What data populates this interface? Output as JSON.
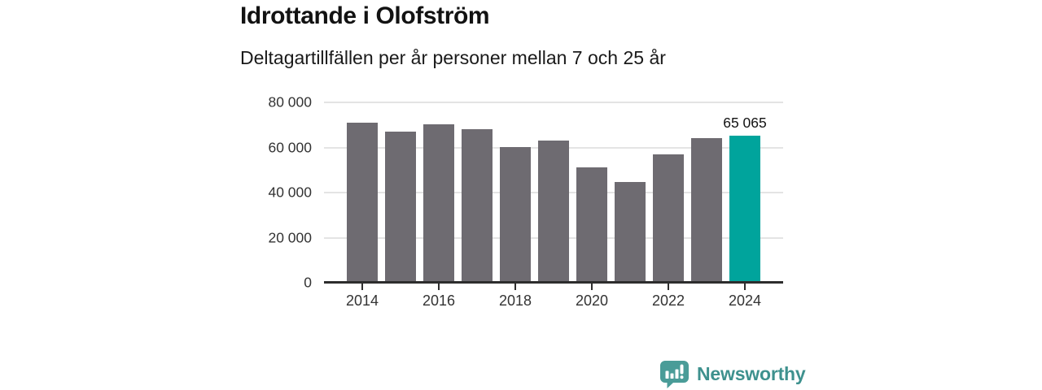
{
  "header": {
    "title": "Idrottande i Olofström",
    "subtitle": "Deltagartillfällen per år personer mellan 7 och 25 år"
  },
  "colors": {
    "bar": "#6e6b71",
    "highlight": "#00a49c",
    "gridline": "#e4e4e4",
    "axis_line": "#2d2d2d",
    "text": "#1a1a1a",
    "logo_bubble": "#4a9c98",
    "logo_text": "#3e918e"
  },
  "chart_data": {
    "type": "bar",
    "title": "Idrottande i Olofström",
    "subtitle": "Deltagartillfällen per år personer mellan 7 och 25 år",
    "categories": [
      2014,
      2015,
      2016,
      2017,
      2018,
      2019,
      2020,
      2021,
      2022,
      2023,
      2024
    ],
    "values": [
      71000,
      67000,
      70300,
      68200,
      60100,
      63200,
      51000,
      44600,
      56800,
      64300,
      65065
    ],
    "highlight_index": 10,
    "data_label": {
      "index": 10,
      "text": "65 065"
    },
    "xlabel": "",
    "ylabel": "",
    "ylim": [
      0,
      80000
    ],
    "yticks": [
      {
        "value": 0,
        "label": "0"
      },
      {
        "value": 20000,
        "label": "20 000"
      },
      {
        "value": 40000,
        "label": "40 000"
      },
      {
        "value": 60000,
        "label": "60 000"
      },
      {
        "value": 80000,
        "label": "80 000"
      }
    ],
    "xticks": [
      {
        "value": 2014,
        "label": "2014"
      },
      {
        "value": 2016,
        "label": "2016"
      },
      {
        "value": 2018,
        "label": "2018"
      },
      {
        "value": 2020,
        "label": "2020"
      },
      {
        "value": 2022,
        "label": "2022"
      },
      {
        "value": 2024,
        "label": "2024"
      }
    ],
    "grid": true,
    "legend": false
  },
  "footer": {
    "brand": "Newsworthy"
  }
}
